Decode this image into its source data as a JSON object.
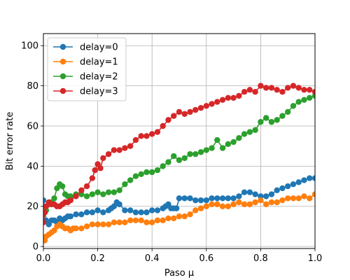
{
  "chart_data": {
    "type": "line",
    "xlabel": "Paso μ",
    "ylabel": "Bit error rate",
    "xlim": [
      0.0,
      1.0
    ],
    "ylim": [
      -1,
      106
    ],
    "xticks": [
      "0.0",
      "0.2",
      "0.4",
      "0.6",
      "0.8",
      "1.0"
    ],
    "yticks": [
      "0",
      "20",
      "40",
      "60",
      "80",
      "100"
    ],
    "grid": true,
    "legend_position": "top-left",
    "marker": "circle",
    "series": [
      {
        "name": "delay=0",
        "color": "#1f77b4",
        "x": [
          0.0,
          0.005,
          0.01,
          0.02,
          0.03,
          0.04,
          0.05,
          0.06,
          0.07,
          0.08,
          0.09,
          0.1,
          0.12,
          0.14,
          0.16,
          0.18,
          0.2,
          0.22,
          0.24,
          0.25,
          0.26,
          0.27,
          0.28,
          0.3,
          0.32,
          0.34,
          0.36,
          0.38,
          0.4,
          0.42,
          0.44,
          0.45,
          0.46,
          0.47,
          0.48,
          0.49,
          0.5,
          0.52,
          0.54,
          0.56,
          0.58,
          0.6,
          0.62,
          0.64,
          0.66,
          0.68,
          0.7,
          0.72,
          0.74,
          0.76,
          0.78,
          0.8,
          0.82,
          0.84,
          0.86,
          0.88,
          0.9,
          0.92,
          0.94,
          0.96,
          0.98,
          1.0
        ],
        "y": [
          23,
          19,
          13,
          11,
          13,
          13,
          12,
          14,
          13,
          14,
          15,
          15,
          16,
          16,
          17,
          17,
          18,
          17,
          18,
          19,
          20,
          22,
          21,
          18,
          18,
          17,
          17,
          17,
          18,
          18,
          19,
          20,
          21,
          19,
          19,
          19,
          24,
          24,
          24,
          23,
          23,
          23,
          24,
          24,
          24,
          24,
          24,
          25,
          27,
          27,
          26,
          25,
          25,
          26,
          28,
          29,
          30,
          31,
          32,
          33,
          34,
          34
        ]
      },
      {
        "name": "delay=1",
        "color": "#ff7f0e",
        "x": [
          0.0,
          0.005,
          0.01,
          0.02,
          0.03,
          0.04,
          0.05,
          0.06,
          0.07,
          0.08,
          0.09,
          0.1,
          0.11,
          0.12,
          0.14,
          0.16,
          0.18,
          0.2,
          0.22,
          0.24,
          0.26,
          0.28,
          0.3,
          0.32,
          0.34,
          0.36,
          0.38,
          0.4,
          0.42,
          0.44,
          0.46,
          0.48,
          0.5,
          0.52,
          0.54,
          0.56,
          0.58,
          0.6,
          0.62,
          0.64,
          0.66,
          0.68,
          0.7,
          0.72,
          0.74,
          0.76,
          0.78,
          0.8,
          0.82,
          0.84,
          0.86,
          0.88,
          0.9,
          0.92,
          0.94,
          0.96,
          0.98,
          1.0
        ],
        "y": [
          4,
          3,
          5,
          6,
          7,
          8,
          10,
          11,
          10,
          9,
          9,
          8,
          9,
          9,
          9,
          10,
          11,
          11,
          11,
          11,
          12,
          12,
          12,
          13,
          13,
          13,
          12,
          12,
          13,
          13,
          14,
          14,
          15,
          15,
          16,
          18,
          19,
          20,
          21,
          21,
          20,
          20,
          21,
          22,
          21,
          21,
          22,
          23,
          21,
          22,
          22,
          23,
          24,
          24,
          24,
          25,
          24,
          26
        ]
      },
      {
        "name": "delay=2",
        "color": "#2ca02c",
        "x": [
          0.0,
          0.005,
          0.01,
          0.02,
          0.03,
          0.04,
          0.05,
          0.06,
          0.07,
          0.08,
          0.09,
          0.1,
          0.12,
          0.14,
          0.16,
          0.18,
          0.2,
          0.22,
          0.24,
          0.26,
          0.28,
          0.3,
          0.32,
          0.34,
          0.36,
          0.38,
          0.4,
          0.42,
          0.44,
          0.46,
          0.48,
          0.5,
          0.52,
          0.54,
          0.56,
          0.58,
          0.6,
          0.62,
          0.64,
          0.66,
          0.68,
          0.7,
          0.72,
          0.74,
          0.76,
          0.78,
          0.8,
          0.82,
          0.84,
          0.86,
          0.88,
          0.9,
          0.92,
          0.94,
          0.96,
          0.98,
          1.0
        ],
        "y": [
          16,
          17,
          18,
          21,
          22,
          24,
          29,
          31,
          30,
          26,
          25,
          25,
          26,
          26,
          25,
          26,
          27,
          26,
          27,
          27,
          28,
          31,
          33,
          35,
          36,
          37,
          37,
          38,
          40,
          42,
          45,
          43,
          44,
          46,
          46,
          47,
          48,
          49,
          53,
          49,
          51,
          52,
          54,
          56,
          57,
          58,
          62,
          64,
          62,
          63,
          65,
          67,
          70,
          72,
          73,
          74,
          75
        ]
      },
      {
        "name": "delay=3",
        "color": "#d62728",
        "x": [
          0.0,
          0.005,
          0.01,
          0.02,
          0.03,
          0.04,
          0.05,
          0.06,
          0.07,
          0.08,
          0.09,
          0.1,
          0.12,
          0.14,
          0.16,
          0.18,
          0.19,
          0.2,
          0.21,
          0.22,
          0.24,
          0.26,
          0.28,
          0.3,
          0.32,
          0.34,
          0.36,
          0.38,
          0.4,
          0.42,
          0.44,
          0.46,
          0.48,
          0.5,
          0.52,
          0.54,
          0.56,
          0.58,
          0.6,
          0.62,
          0.64,
          0.66,
          0.68,
          0.7,
          0.72,
          0.74,
          0.76,
          0.78,
          0.8,
          0.82,
          0.84,
          0.86,
          0.88,
          0.9,
          0.92,
          0.94,
          0.96,
          0.98,
          1.0
        ],
        "y": [
          12,
          17,
          20,
          22,
          21,
          21,
          20,
          20,
          21,
          22,
          22,
          23,
          25,
          28,
          30,
          34,
          38,
          41,
          39,
          44,
          46,
          48,
          48,
          49,
          50,
          53,
          55,
          55,
          56,
          57,
          60,
          63,
          65,
          67,
          66,
          67,
          68,
          69,
          70,
          71,
          72,
          73,
          74,
          74,
          75,
          77,
          78,
          77,
          80,
          79,
          79,
          78,
          77,
          79,
          80,
          79,
          78,
          78,
          77
        ]
      }
    ]
  }
}
